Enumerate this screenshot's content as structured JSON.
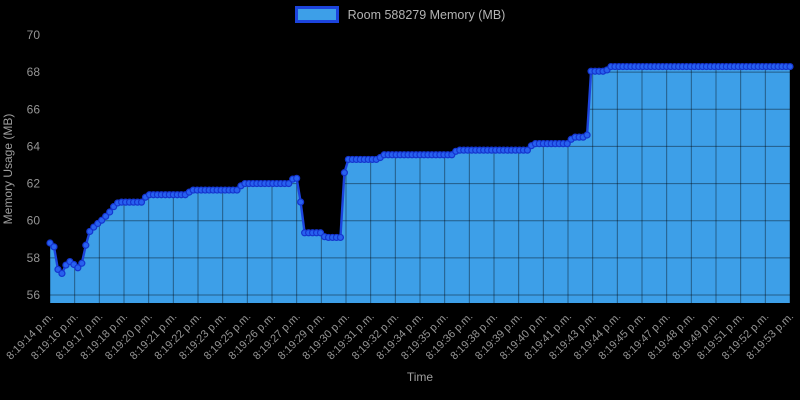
{
  "page": {
    "background": "#000000"
  },
  "legend": {
    "label": "Room 588279 Memory (MB)"
  },
  "chart_data": {
    "type": "area",
    "title": "",
    "xlabel": "Time",
    "ylabel": "Memory Usage (MB)",
    "legend_position": "top",
    "grid": true,
    "ylim": [
      55.6,
      70.3
    ],
    "y_ticks": [
      56,
      58,
      60,
      62,
      64,
      66,
      68,
      70
    ],
    "x_tick_labels": [
      "8:19:14 p.m.",
      "8:19:16 p.m.",
      "8:19:17 p.m.",
      "8:19:18 p.m.",
      "8:19:20 p.m.",
      "8:19:21 p.m.",
      "8:19:22 p.m.",
      "8:19:23 p.m.",
      "8:19:25 p.m.",
      "8:19:26 p.m.",
      "8:19:27 p.m.",
      "8:19:29 p.m.",
      "8:19:30 p.m.",
      "8:19:31 p.m.",
      "8:19:32 p.m.",
      "8:19:34 p.m.",
      "8:19:35 p.m.",
      "8:19:36 p.m.",
      "8:19:38 p.m.",
      "8:19:39 p.m.",
      "8:19:40 p.m.",
      "8:19:41 p.m.",
      "8:19:43 p.m.",
      "8:19:44 p.m.",
      "8:19:45 p.m.",
      "8:19:47 p.m.",
      "8:19:48 p.m.",
      "8:19:49 p.m.",
      "8:19:51 p.m.",
      "8:19:52 p.m.",
      "8:19:53 p.m."
    ],
    "x_range_seconds": [
      14,
      53
    ],
    "x_tick_interval_s": 1.3,
    "marker_sample_interval_s": 0.21,
    "series": [
      {
        "name": "Room 588279 Memory (MB)",
        "points": [
          [
            14.0,
            58.8
          ],
          [
            14.2,
            58.65
          ],
          [
            14.45,
            57.2
          ],
          [
            14.6,
            57.1
          ],
          [
            14.95,
            57.85
          ],
          [
            15.15,
            57.75
          ],
          [
            15.4,
            57.5
          ],
          [
            15.6,
            57.4
          ],
          [
            15.8,
            58.2
          ],
          [
            16.0,
            59.3
          ],
          [
            16.2,
            59.55
          ],
          [
            16.45,
            59.8
          ],
          [
            16.65,
            59.95
          ],
          [
            16.85,
            60.15
          ],
          [
            17.05,
            60.35
          ],
          [
            17.25,
            60.6
          ],
          [
            17.45,
            60.9
          ],
          [
            17.65,
            61.0
          ],
          [
            18.9,
            61.0
          ],
          [
            19.1,
            61.4
          ],
          [
            21.2,
            61.4
          ],
          [
            21.45,
            61.65
          ],
          [
            23.9,
            61.65
          ],
          [
            24.15,
            62.0
          ],
          [
            26.6,
            62.0
          ],
          [
            26.8,
            62.25
          ],
          [
            27.1,
            62.3
          ],
          [
            27.35,
            59.35
          ],
          [
            28.3,
            59.35
          ],
          [
            28.5,
            59.1
          ],
          [
            29.35,
            59.1
          ],
          [
            29.55,
            63.3
          ],
          [
            31.3,
            63.3
          ],
          [
            31.55,
            63.55
          ],
          [
            35.2,
            63.55
          ],
          [
            35.45,
            63.8
          ],
          [
            39.2,
            63.8
          ],
          [
            39.45,
            64.15
          ],
          [
            41.3,
            64.15
          ],
          [
            41.55,
            64.5
          ],
          [
            42.3,
            64.5
          ],
          [
            42.5,
            68.05
          ],
          [
            43.3,
            68.05
          ],
          [
            43.5,
            68.3
          ],
          [
            53.0,
            68.3
          ]
        ]
      }
    ],
    "colors": {
      "area_fill": "#3d9fe8",
      "line": "#1c44dd",
      "marker_fill": "#2761ef",
      "marker_stroke": "#1535cf",
      "grid_over_fill": "rgba(0,0,0,0.42)",
      "tick_text": "#949494",
      "legend_text": "#b3b3b3"
    }
  }
}
